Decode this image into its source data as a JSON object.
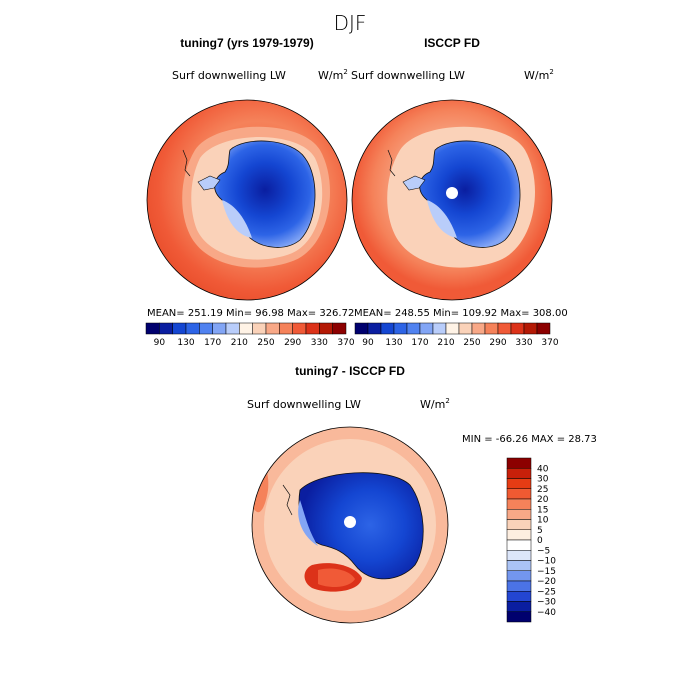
{
  "figure_title": "DJF",
  "chart_data": [
    {
      "type": "heatmap",
      "projection": "south-polar-stereographic",
      "title": "tuning7 (yrs 1979-1979)",
      "variable": "Surf downwelling LW",
      "units": "W/m",
      "units_sup": "2",
      "stats": {
        "mean": "251.19",
        "min": "96.98",
        "max": "326.72"
      },
      "stats_text": "MEAN= 251.19  Min=  96.98  Max= 326.72",
      "colorbar_orientation": "horizontal",
      "colorbar_levels": [
        90,
        110,
        130,
        150,
        170,
        190,
        210,
        230,
        250,
        270,
        290,
        310,
        330,
        350,
        370
      ],
      "colorbar_tick_labels": [
        "90",
        "130",
        "170",
        "210",
        "250",
        "290",
        "330",
        "370"
      ],
      "pole_hole": false
    },
    {
      "type": "heatmap",
      "projection": "south-polar-stereographic",
      "title": "ISCCP FD",
      "variable": "Surf downwelling LW",
      "units": "W/m",
      "units_sup": "2",
      "stats": {
        "mean": "248.55",
        "min": "109.92",
        "max": "308.00"
      },
      "stats_text": "MEAN= 248.55  Min= 109.92  Max= 308.00",
      "colorbar_orientation": "horizontal",
      "colorbar_levels": [
        90,
        110,
        130,
        150,
        170,
        190,
        210,
        230,
        250,
        270,
        290,
        310,
        330,
        350,
        370
      ],
      "colorbar_tick_labels": [
        "90",
        "130",
        "170",
        "210",
        "250",
        "290",
        "330",
        "370"
      ],
      "pole_hole": true
    },
    {
      "type": "heatmap",
      "projection": "south-polar-stereographic",
      "title": "tuning7 - ISCCP FD",
      "variable": "Surf downwelling LW",
      "units": "W/m",
      "units_sup": "2",
      "stats": {
        "min": "-66.26",
        "max": "28.73"
      },
      "stats_text": "MIN = -66.26 MAX =  28.73",
      "colorbar_orientation": "vertical",
      "colorbar_levels": [
        -40,
        -30,
        -25,
        -20,
        -15,
        -10,
        -5,
        0,
        5,
        10,
        15,
        20,
        25,
        30,
        40
      ],
      "colorbar_tick_labels": [
        "40",
        "30",
        "25",
        "20",
        "15",
        "10",
        "5",
        "0",
        "−5",
        "−10",
        "−15",
        "−20",
        "−25",
        "−30",
        "−40"
      ],
      "pole_hole": true
    }
  ],
  "colors": {
    "abs_scale": [
      "#00006e",
      "#0a1ea0",
      "#1446d2",
      "#2d64e6",
      "#5082f0",
      "#82a5f5",
      "#b9cdfa",
      "#fff3e6",
      "#fad2b9",
      "#f8a887",
      "#f5825a",
      "#f05a37",
      "#dc3219",
      "#b41905",
      "#8c0000"
    ],
    "diff_scale": [
      "#8c0000",
      "#c8200a",
      "#e63c14",
      "#f05a32",
      "#f5825a",
      "#f8a887",
      "#fad2b9",
      "#fdeee0",
      "#ffffff",
      "#dce6fa",
      "#aac3f5",
      "#7396ee",
      "#4b73e6",
      "#2346d2",
      "#0a1ea0",
      "#00006e"
    ]
  }
}
